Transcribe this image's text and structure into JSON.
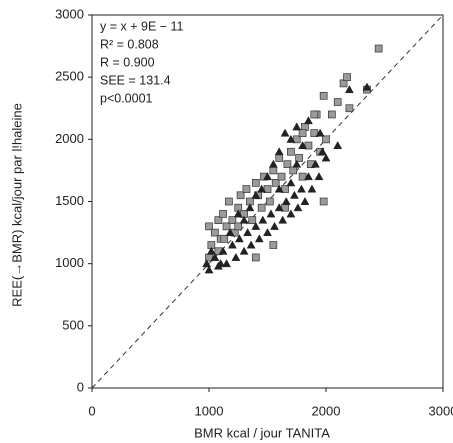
{
  "chart_data": {
    "type": "scatter",
    "xlabel": "BMR kcal / jour TANITA",
    "ylabel": "REE(→BMR)   kcal/jour   par l!haleine",
    "annotations": [
      "y = x + 9E − 11",
      "R² = 0.808",
      "R = 0.900",
      "SEE = 131.4",
      "p<0.0001"
    ],
    "xlim": [
      0,
      3000
    ],
    "ylim": [
      0,
      3000
    ],
    "xticks": [
      0,
      1000,
      2000,
      3000
    ],
    "yticks": [
      0,
      500,
      1000,
      1500,
      2000,
      2500,
      3000
    ],
    "grid": false,
    "identity_line": true,
    "series": [
      {
        "marker": "square",
        "color": "#9a9a9a",
        "x": [
          1000,
          1020,
          1050,
          1080,
          1100,
          1120,
          1150,
          1170,
          1200,
          1220,
          1250,
          1270,
          1300,
          1320,
          1350,
          1370,
          1400,
          1420,
          1450,
          1470,
          1500,
          1520,
          1550,
          1570,
          1600,
          1620,
          1650,
          1670,
          1700,
          1720,
          1750,
          1770,
          1800,
          1820,
          1850,
          1870,
          1900,
          1920,
          1950,
          1980,
          2000,
          2050,
          2100,
          2150,
          2180,
          2200,
          1980,
          1550,
          1400,
          1000,
          1080,
          1130,
          2450,
          2350,
          1650,
          1800,
          1900,
          1250
        ],
        "values": [
          1300,
          1150,
          1250,
          1350,
          1200,
          1400,
          1300,
          1500,
          1350,
          1250,
          1450,
          1550,
          1400,
          1600,
          1500,
          1350,
          1650,
          1550,
          1450,
          1700,
          1600,
          1500,
          1750,
          1650,
          1850,
          1700,
          1600,
          1800,
          1900,
          1750,
          2000,
          1850,
          1700,
          2100,
          1950,
          1800,
          2050,
          2200,
          1900,
          2350,
          2000,
          2200,
          2300,
          2450,
          2500,
          2250,
          1500,
          1150,
          1050,
          1050,
          1100,
          1200,
          2730,
          2400,
          1450,
          2050,
          2200,
          1300
        ]
      },
      {
        "marker": "triangle",
        "color": "#222222",
        "x": [
          980,
          1000,
          1050,
          1080,
          1120,
          1150,
          1200,
          1230,
          1260,
          1300,
          1330,
          1360,
          1400,
          1430,
          1460,
          1500,
          1530,
          1560,
          1600,
          1630,
          1660,
          1700,
          1730,
          1760,
          1790,
          1820,
          1850,
          1880,
          1910,
          1940,
          1970,
          2000,
          1600,
          1650,
          1700,
          1750,
          1800,
          1850,
          1550,
          1500,
          1450,
          1400,
          1350,
          1300,
          1250,
          1700,
          2200,
          2350,
          2100,
          1950,
          1100,
          1020,
          1180,
          1600,
          1750
        ],
        "values": [
          1000,
          950,
          1050,
          980,
          1100,
          1000,
          1150,
          1050,
          1200,
          1100,
          1250,
          1150,
          1300,
          1200,
          1350,
          1250,
          1400,
          1300,
          1450,
          1350,
          1500,
          1400,
          1550,
          1450,
          1600,
          1500,
          1700,
          1600,
          1800,
          1700,
          1900,
          1850,
          1900,
          2050,
          2000,
          2100,
          1950,
          2150,
          1800,
          1700,
          1600,
          1550,
          1450,
          1350,
          1400,
          1650,
          2400,
          2420,
          1950,
          2050,
          1000,
          1100,
          1250,
          1600,
          1800
        ]
      }
    ]
  }
}
